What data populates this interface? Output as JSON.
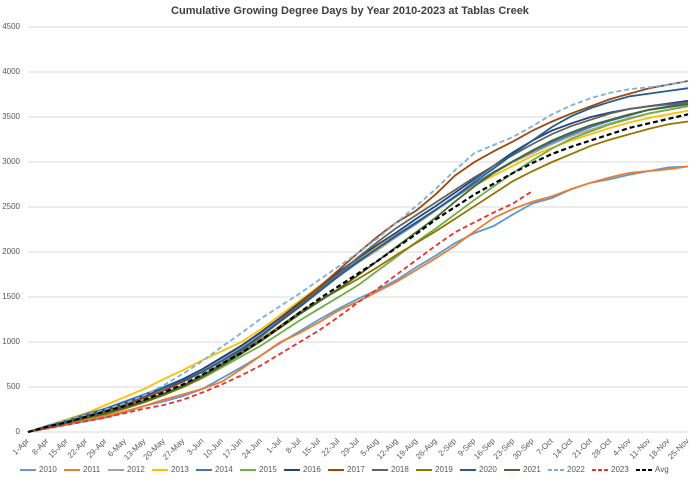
{
  "chart_data": {
    "type": "line",
    "title": "Cumulative Growing Degree Days by Year 2010-2023 at Tablas Creek",
    "categories": [
      "1-Apr",
      "8-Apr",
      "15-Apr",
      "22-Apr",
      "29-Apr",
      "6-May",
      "13-May",
      "20-May",
      "27-May",
      "3-Jun",
      "10-Jun",
      "17-Jun",
      "24-Jun",
      "1-Jul",
      "8-Jul",
      "15-Jul",
      "22-Jul",
      "29-Jul",
      "5-Aug",
      "12-Aug",
      "19-Aug",
      "26-Aug",
      "2-Sep",
      "9-Sep",
      "16-Sep",
      "23-Sep",
      "30-Sep",
      "7-Oct",
      "14-Oct",
      "21-Oct",
      "28-Oct",
      "4-Nov",
      "11-Nov",
      "18-Nov",
      "25-Nov"
    ],
    "ylim": [
      0,
      4500
    ],
    "yticks": [
      0,
      500,
      1000,
      1500,
      2000,
      2500,
      3000,
      3500,
      4000,
      4500
    ],
    "grid": true,
    "legend": "bottom",
    "series": [
      {
        "name": "2010",
        "color": "#5b9bd5",
        "dash": false,
        "values": [
          0,
          40,
          80,
          120,
          160,
          220,
          290,
          340,
          400,
          480,
          600,
          720,
          850,
          990,
          1120,
          1250,
          1370,
          1480,
          1580,
          1690,
          1830,
          1960,
          2100,
          2210,
          2290,
          2420,
          2540,
          2600,
          2700,
          2770,
          2810,
          2860,
          2900,
          2940,
          2950
        ]
      },
      {
        "name": "2011",
        "color": "#ed7d31",
        "dash": false,
        "values": [
          0,
          40,
          90,
          130,
          180,
          230,
          290,
          360,
          420,
          480,
          560,
          700,
          850,
          1000,
          1100,
          1220,
          1350,
          1450,
          1560,
          1670,
          1800,
          1930,
          2070,
          2230,
          2380,
          2480,
          2560,
          2620,
          2700,
          2770,
          2830,
          2880,
          2900,
          2920,
          2950
        ]
      },
      {
        "name": "2012",
        "color": "#a5a5a5",
        "dash": false,
        "values": [
          0,
          60,
          110,
          180,
          240,
          310,
          380,
          470,
          560,
          680,
          810,
          940,
          1090,
          1250,
          1410,
          1570,
          1730,
          1880,
          2020,
          2170,
          2310,
          2460,
          2610,
          2760,
          2880,
          3000,
          3100,
          3200,
          3290,
          3360,
          3430,
          3490,
          3540,
          3580,
          3620
        ]
      },
      {
        "name": "2013",
        "color": "#ffc000",
        "dash": false,
        "values": [
          0,
          70,
          140,
          210,
          300,
          390,
          480,
          590,
          690,
          800,
          900,
          1000,
          1140,
          1300,
          1460,
          1620,
          1780,
          1920,
          2060,
          2190,
          2330,
          2470,
          2610,
          2740,
          2850,
          2960,
          3070,
          3160,
          3240,
          3310,
          3380,
          3440,
          3490,
          3530,
          3570
        ]
      },
      {
        "name": "2014",
        "color": "#4472c4",
        "dash": false,
        "values": [
          0,
          70,
          130,
          200,
          260,
          340,
          420,
          500,
          590,
          700,
          830,
          960,
          1110,
          1270,
          1430,
          1590,
          1750,
          1900,
          2040,
          2180,
          2320,
          2470,
          2610,
          2760,
          2890,
          3010,
          3120,
          3220,
          3310,
          3390,
          3460,
          3520,
          3580,
          3620,
          3660
        ]
      },
      {
        "name": "2015",
        "color": "#70ad47",
        "dash": false,
        "values": [
          0,
          60,
          110,
          170,
          230,
          290,
          350,
          420,
          500,
          600,
          720,
          840,
          960,
          1100,
          1240,
          1370,
          1500,
          1630,
          1790,
          1950,
          2110,
          2260,
          2420,
          2580,
          2730,
          2880,
          3020,
          3150,
          3260,
          3340,
          3420,
          3480,
          3540,
          3580,
          3620
        ]
      },
      {
        "name": "2016",
        "color": "#264478",
        "dash": false,
        "values": [
          0,
          60,
          120,
          180,
          240,
          320,
          400,
          490,
          590,
          700,
          830,
          960,
          1110,
          1270,
          1440,
          1610,
          1780,
          1930,
          2080,
          2220,
          2370,
          2510,
          2660,
          2810,
          2960,
          3110,
          3240,
          3350,
          3430,
          3500,
          3550,
          3590,
          3620,
          3650,
          3680
        ]
      },
      {
        "name": "2017",
        "color": "#9e480e",
        "dash": false,
        "values": [
          0,
          50,
          100,
          160,
          230,
          300,
          380,
          460,
          560,
          670,
          790,
          920,
          1070,
          1240,
          1420,
          1610,
          1800,
          1990,
          2170,
          2330,
          2460,
          2640,
          2850,
          3000,
          3120,
          3230,
          3350,
          3450,
          3540,
          3620,
          3700,
          3760,
          3820,
          3860,
          3900
        ]
      },
      {
        "name": "2018",
        "color": "#636363",
        "dash": false,
        "values": [
          0,
          50,
          100,
          160,
          220,
          280,
          350,
          430,
          520,
          630,
          760,
          900,
          1060,
          1230,
          1400,
          1580,
          1760,
          1940,
          2110,
          2270,
          2410,
          2550,
          2690,
          2830,
          2960,
          3080,
          3200,
          3310,
          3400,
          3470,
          3540,
          3590,
          3620,
          3640,
          3660
        ]
      },
      {
        "name": "2019",
        "color": "#997300",
        "dash": false,
        "values": [
          0,
          50,
          100,
          150,
          200,
          260,
          330,
          410,
          500,
          610,
          740,
          880,
          1030,
          1180,
          1330,
          1460,
          1580,
          1700,
          1830,
          1970,
          2100,
          2230,
          2370,
          2510,
          2650,
          2790,
          2900,
          3000,
          3090,
          3180,
          3250,
          3310,
          3370,
          3420,
          3450
        ]
      },
      {
        "name": "2020",
        "color": "#255e91",
        "dash": false,
        "values": [
          0,
          60,
          120,
          190,
          260,
          330,
          410,
          490,
          570,
          670,
          790,
          920,
          1070,
          1230,
          1390,
          1560,
          1730,
          1890,
          2040,
          2190,
          2330,
          2470,
          2620,
          2780,
          2930,
          3090,
          3240,
          3390,
          3510,
          3600,
          3670,
          3730,
          3760,
          3790,
          3820
        ]
      },
      {
        "name": "2021",
        "color": "#43682b",
        "dash": false,
        "values": [
          0,
          50,
          100,
          160,
          210,
          270,
          340,
          420,
          510,
          620,
          740,
          870,
          1010,
          1160,
          1310,
          1450,
          1590,
          1740,
          1900,
          2060,
          2220,
          2380,
          2560,
          2730,
          2880,
          3010,
          3130,
          3240,
          3330,
          3410,
          3470,
          3530,
          3580,
          3610,
          3640
        ]
      },
      {
        "name": "2022",
        "color": "#7cafdd",
        "dash": true,
        "values": [
          0,
          70,
          130,
          190,
          250,
          320,
          410,
          520,
          650,
          790,
          950,
          1100,
          1260,
          1400,
          1540,
          1690,
          1840,
          1990,
          2150,
          2330,
          2510,
          2700,
          2910,
          3100,
          3190,
          3280,
          3400,
          3530,
          3630,
          3710,
          3770,
          3810,
          3830,
          3860,
          3900
        ]
      },
      {
        "name": "2023",
        "color": "#e8312f",
        "dash": true,
        "values": [
          0,
          40,
          80,
          120,
          160,
          210,
          260,
          300,
          360,
          440,
          530,
          630,
          740,
          870,
          1000,
          1130,
          1280,
          1440,
          1590,
          1750,
          1910,
          2070,
          2220,
          2330,
          2440,
          2540,
          2680,
          null,
          null,
          null,
          null,
          null,
          null,
          null,
          null
        ]
      },
      {
        "name": "Avg",
        "color": "#000000",
        "dash": true,
        "values": [
          0,
          60,
          110,
          170,
          230,
          290,
          360,
          440,
          530,
          640,
          760,
          880,
          1020,
          1170,
          1330,
          1480,
          1620,
          1760,
          1900,
          2050,
          2200,
          2360,
          2500,
          2640,
          2760,
          2880,
          2990,
          3090,
          3170,
          3240,
          3310,
          3380,
          3430,
          3480,
          3530
        ]
      }
    ]
  }
}
